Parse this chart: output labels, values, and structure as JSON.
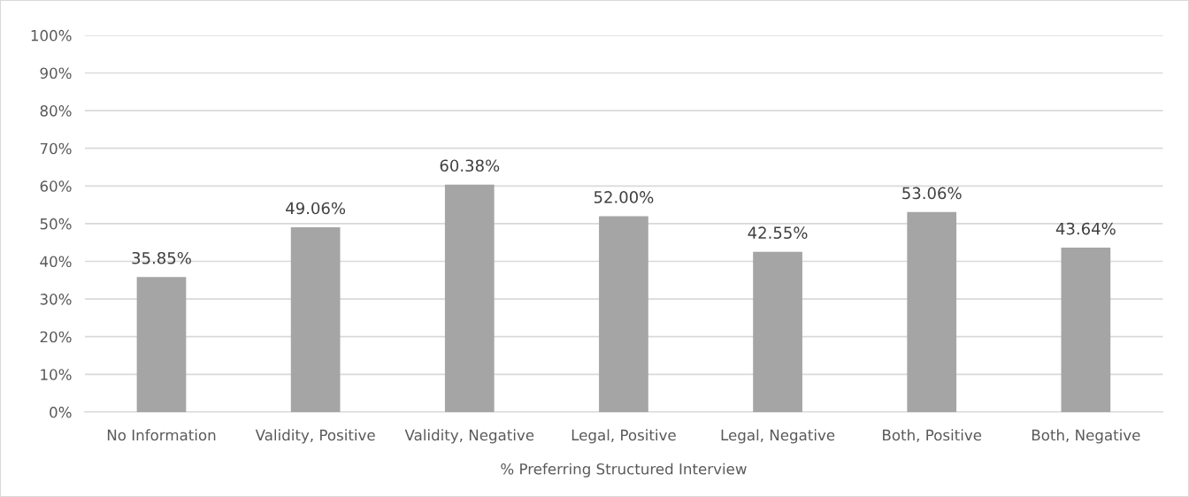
{
  "chart_data": {
    "type": "bar",
    "categories": [
      "No Information",
      "Validity, Positive",
      "Validity, Negative",
      "Legal, Positive",
      "Legal, Negative",
      "Both, Positive",
      "Both, Negative"
    ],
    "values": [
      35.85,
      49.06,
      60.38,
      52.0,
      42.55,
      53.06,
      43.64
    ],
    "value_labels": [
      "35.85%",
      "49.06%",
      "60.38%",
      "52.00%",
      "42.55%",
      "53.06%",
      "43.64%"
    ],
    "color": "#a5a5a5",
    "xlabel": "% Preferring Structured Interview",
    "ylim": [
      0,
      100
    ],
    "yticks": [
      {
        "value": 0,
        "label": "0%"
      },
      {
        "value": 10,
        "label": "10%"
      },
      {
        "value": 20,
        "label": "20%"
      },
      {
        "value": 30,
        "label": "30%"
      },
      {
        "value": 40,
        "label": "40%"
      },
      {
        "value": 50,
        "label": "50%"
      },
      {
        "value": 60,
        "label": "60%"
      },
      {
        "value": 70,
        "label": "70%"
      },
      {
        "value": 80,
        "label": "80%"
      },
      {
        "value": 90,
        "label": "90%"
      },
      {
        "value": 100,
        "label": "100%"
      }
    ],
    "grid": "y"
  }
}
